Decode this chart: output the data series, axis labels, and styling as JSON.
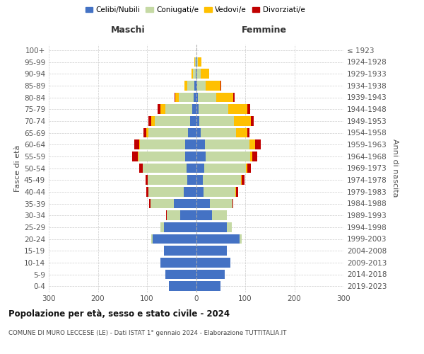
{
  "age_groups": [
    "0-4",
    "5-9",
    "10-14",
    "15-19",
    "20-24",
    "25-29",
    "30-34",
    "35-39",
    "40-44",
    "45-49",
    "50-54",
    "55-59",
    "60-64",
    "65-69",
    "70-74",
    "75-79",
    "80-84",
    "85-89",
    "90-94",
    "95-99",
    "100+"
  ],
  "birth_years": [
    "2019-2023",
    "2014-2018",
    "2009-2013",
    "2004-2008",
    "1999-2003",
    "1994-1998",
    "1989-1993",
    "1984-1988",
    "1979-1983",
    "1974-1978",
    "1969-1973",
    "1964-1968",
    "1959-1963",
    "1954-1958",
    "1949-1953",
    "1944-1948",
    "1939-1943",
    "1934-1938",
    "1929-1933",
    "1924-1928",
    "≤ 1923"
  ],
  "colors": {
    "celibi": "#4472c4",
    "coniugati": "#c5d9a4",
    "vedovi": "#ffc000",
    "divorziati": "#c00000"
  },
  "males": {
    "celibi": [
      55,
      62,
      72,
      65,
      88,
      65,
      32,
      45,
      25,
      18,
      20,
      22,
      22,
      17,
      12,
      8,
      5,
      3,
      1,
      1,
      0
    ],
    "coniugati": [
      0,
      0,
      0,
      0,
      4,
      8,
      28,
      48,
      72,
      80,
      88,
      95,
      92,
      80,
      72,
      55,
      30,
      15,
      5,
      1,
      0
    ],
    "vedovi": [
      0,
      0,
      0,
      0,
      0,
      0,
      0,
      0,
      0,
      0,
      0,
      1,
      2,
      5,
      8,
      10,
      8,
      6,
      3,
      1,
      0
    ],
    "divorziati": [
      0,
      0,
      0,
      0,
      0,
      0,
      1,
      2,
      4,
      5,
      8,
      12,
      10,
      5,
      5,
      5,
      1,
      0,
      0,
      0,
      0
    ]
  },
  "females": {
    "nubili": [
      50,
      58,
      70,
      62,
      88,
      62,
      32,
      28,
      15,
      14,
      16,
      20,
      18,
      10,
      7,
      5,
      3,
      2,
      1,
      1,
      0
    ],
    "coniugate": [
      0,
      0,
      0,
      0,
      5,
      10,
      30,
      46,
      65,
      78,
      85,
      90,
      90,
      72,
      70,
      60,
      38,
      18,
      8,
      2,
      0
    ],
    "vedove": [
      0,
      0,
      0,
      0,
      0,
      0,
      0,
      0,
      1,
      1,
      3,
      5,
      12,
      22,
      35,
      40,
      35,
      30,
      18,
      8,
      1
    ],
    "divorziate": [
      0,
      0,
      0,
      0,
      0,
      0,
      0,
      2,
      4,
      5,
      8,
      10,
      12,
      5,
      5,
      5,
      2,
      1,
      0,
      0,
      0
    ]
  },
  "title": "Popolazione per età, sesso e stato civile - 2024",
  "subtitle": "COMUNE DI MURO LECCESE (LE) - Dati ISTAT 1° gennaio 2024 - Elaborazione TUTTITALIA.IT",
  "xlabel_left": "Maschi",
  "xlabel_right": "Femmine",
  "ylabel_left": "Fasce di età",
  "ylabel_right": "Anni di nascita",
  "legend_labels": [
    "Celibi/Nubili",
    "Coniugati/e",
    "Vedovi/e",
    "Divorziati/e"
  ],
  "xlim": 300,
  "background": "#ffffff",
  "grid_color": "#cccccc"
}
